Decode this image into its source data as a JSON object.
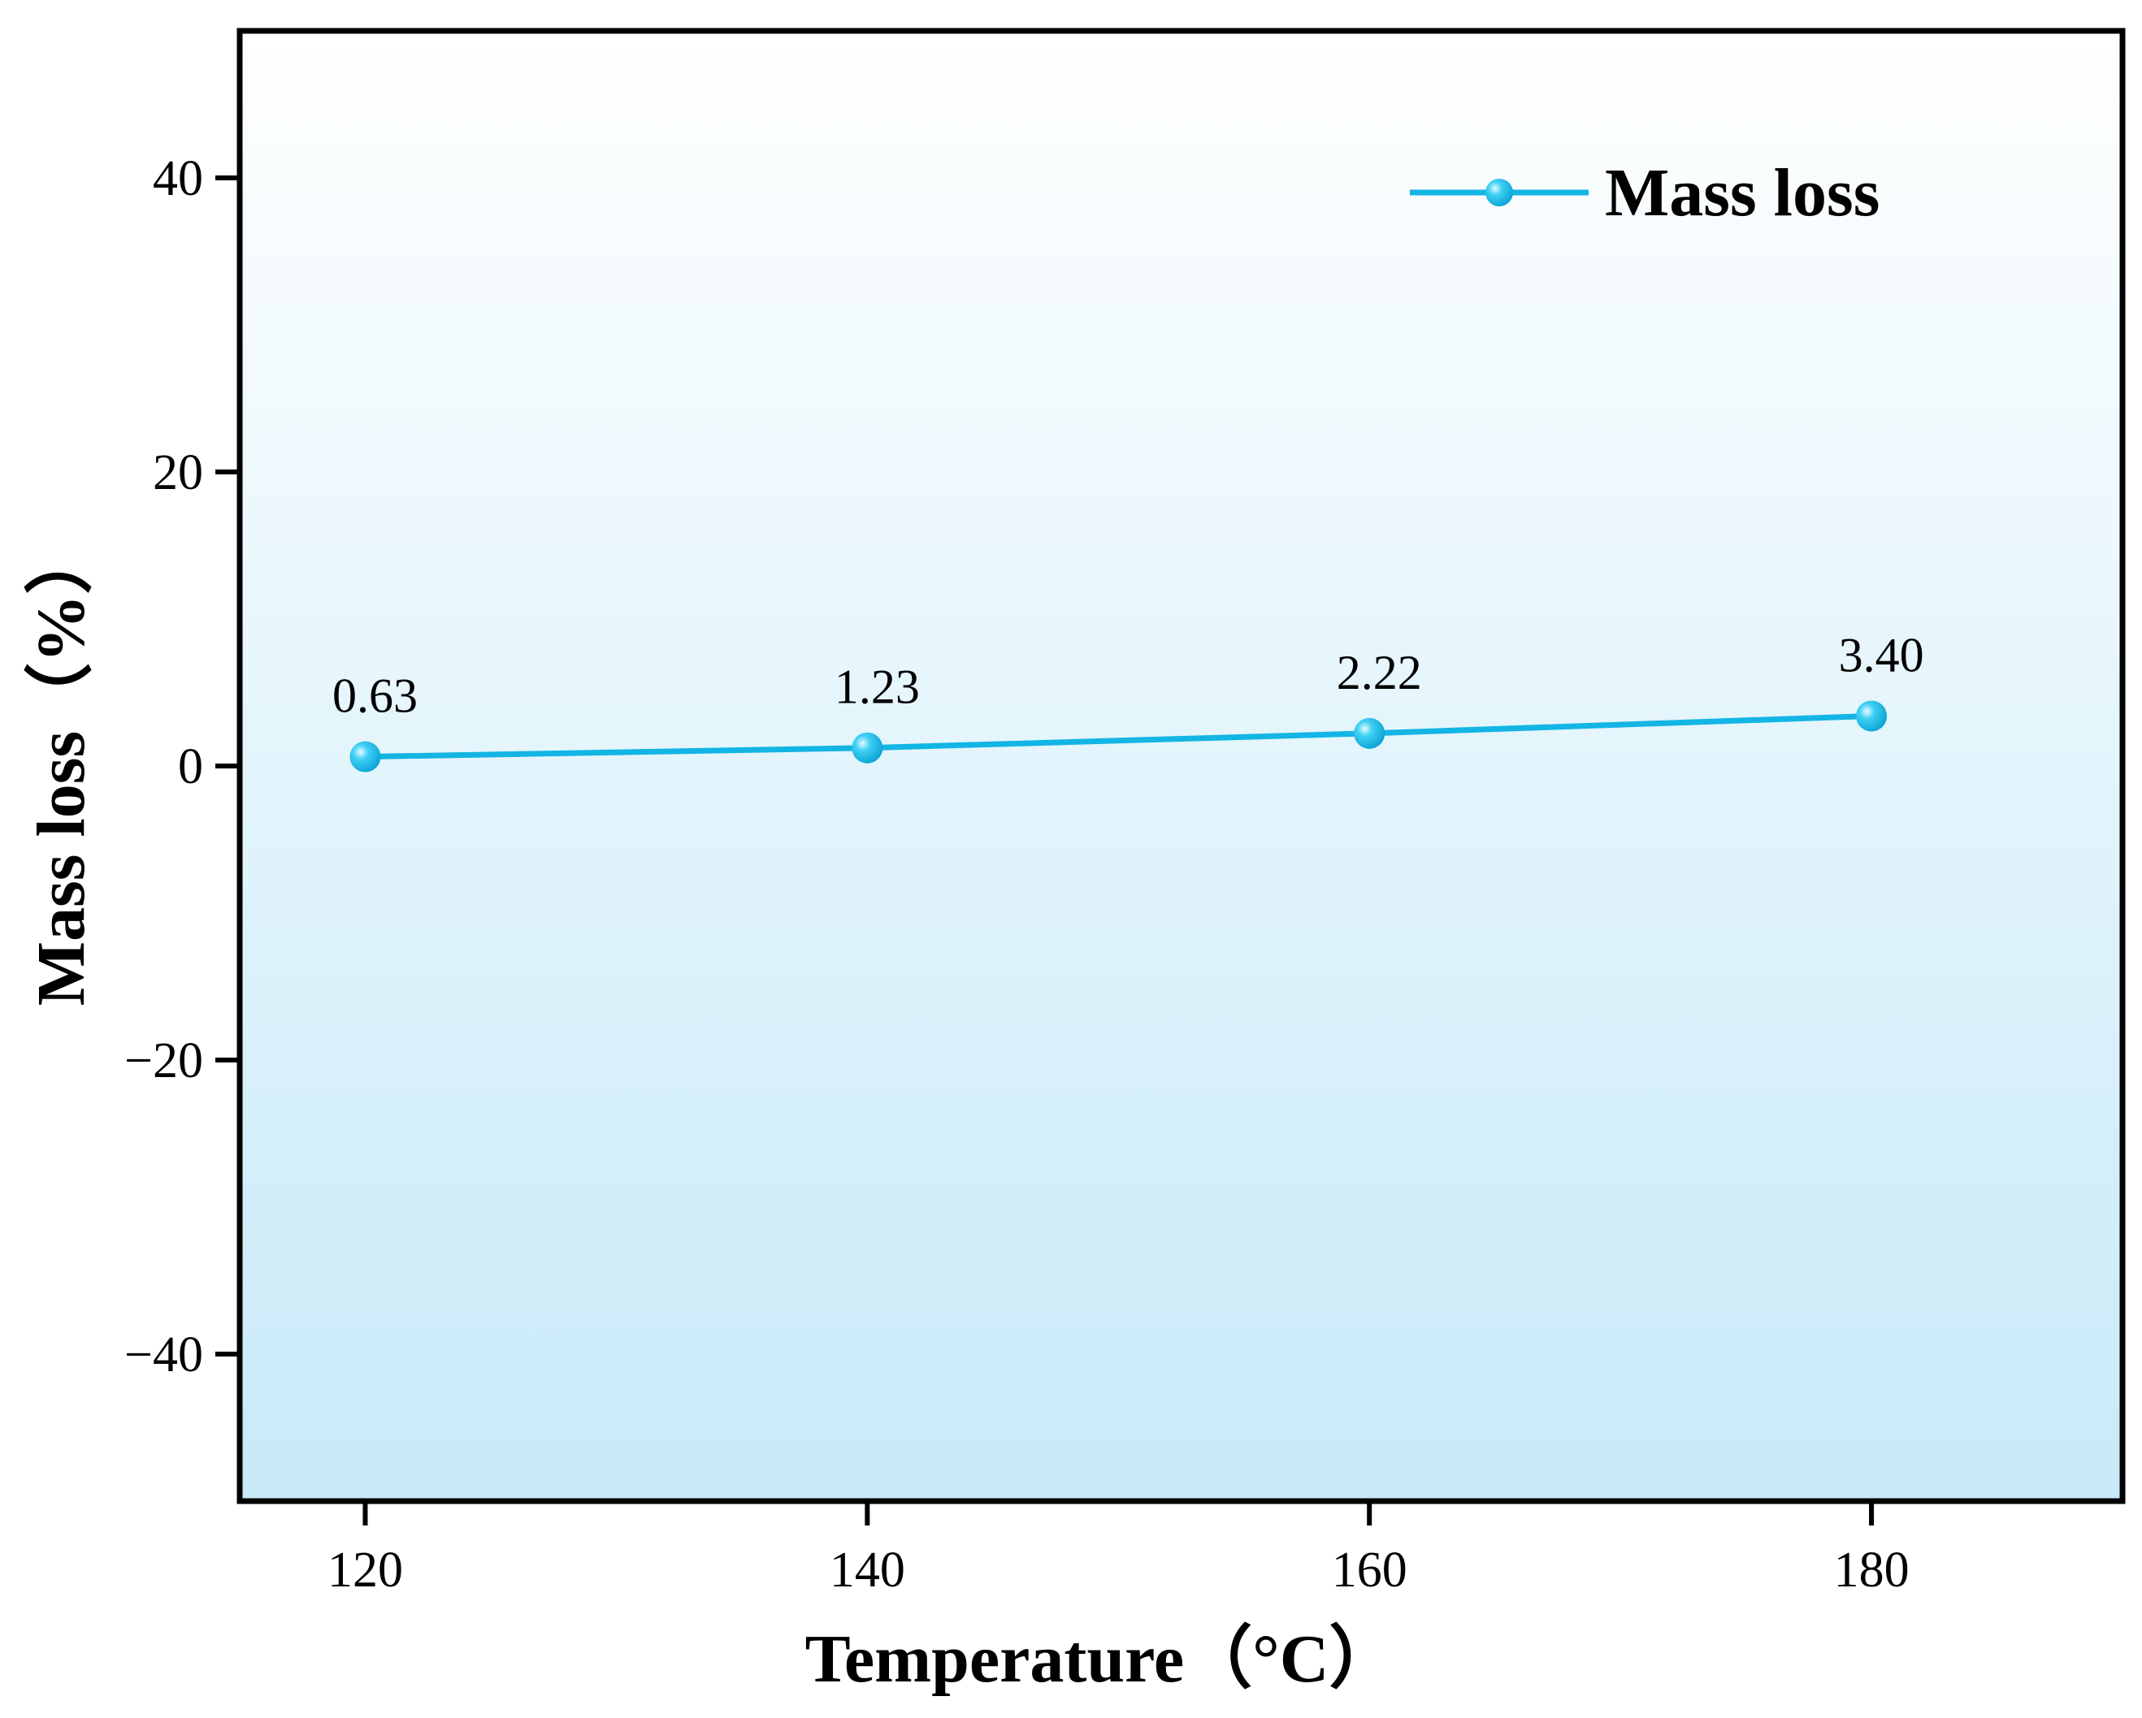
{
  "chart_data": {
    "type": "line",
    "title": "",
    "xlabel": "Temperature（°C）",
    "ylabel": "Mass loss（%）",
    "x": [
      120,
      140,
      160,
      180
    ],
    "xlim": [
      115,
      190
    ],
    "ylim": [
      -50,
      50
    ],
    "xticks": [
      120,
      140,
      160,
      180
    ],
    "yticks": [
      -40,
      -20,
      0,
      20,
      40
    ],
    "ytick_labels": [
      "−40",
      "−20",
      "0",
      "20",
      "40"
    ],
    "series": [
      {
        "name": "Mass loss",
        "values": [
          0.63,
          1.23,
          2.22,
          3.4
        ],
        "data_labels": [
          "0.63",
          "1.23",
          "2.22",
          "3.40"
        ],
        "color": "#12b5e4"
      }
    ],
    "legend_position": "top-right",
    "background_gradient": [
      "#ffffff",
      "#c7eaf8"
    ],
    "grid": false
  }
}
